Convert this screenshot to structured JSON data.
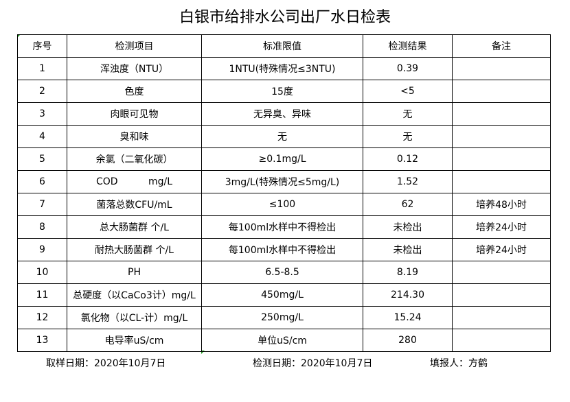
{
  "title": "白银市给排水公司出厂水日检表",
  "headers": [
    "序号",
    "检测项目",
    "标准限值",
    "检测结果",
    "备注"
  ],
  "rows": [
    [
      "1",
      "浑浊度（NTU）",
      "1NTU(特殊情况≤3NTU)",
      "0.39",
      ""
    ],
    [
      "2",
      "色度",
      "15度",
      "<5",
      ""
    ],
    [
      "3",
      "肉眼可见物",
      "无异臭、异味",
      "无",
      ""
    ],
    [
      "4",
      "臭和味",
      "无",
      "无",
      ""
    ],
    [
      "5",
      "余氯（二氧化碳）",
      "≥0.1mg/L",
      "0.12",
      ""
    ],
    [
      "6",
      "COD          mg/L",
      "3mg/L(特殊情况≤5mg/L)",
      "1.52",
      ""
    ],
    [
      "7",
      "菌落总数CFU/mL",
      "≤100",
      "62",
      "培养48小时"
    ],
    [
      "8",
      "总大肠菌群 个/L",
      "每100ml水样中不得检出",
      "未检出",
      "培养24小时"
    ],
    [
      "9",
      "耐热大肠菌群 个/L",
      "每100ml水样中不得检出",
      "未检出",
      "培养24小时"
    ],
    [
      "10",
      "PH",
      "6.5-8.5",
      "8.19",
      ""
    ],
    [
      "11",
      "总硬度（以CaCo3计）mg/L",
      "450mg/L",
      "214.30",
      ""
    ],
    [
      "12",
      "氯化物（以CL-计）mg/L",
      "250mg/L",
      "15.24",
      ""
    ],
    [
      "13",
      "电导率uS/cm",
      "单位uS/cm",
      "280",
      ""
    ]
  ],
  "footer": {
    "sample_date": "取样日期：2020年10月7日",
    "test_date": "检测日期：2020年10月7日",
    "reporter": "填报人：方鹤"
  }
}
